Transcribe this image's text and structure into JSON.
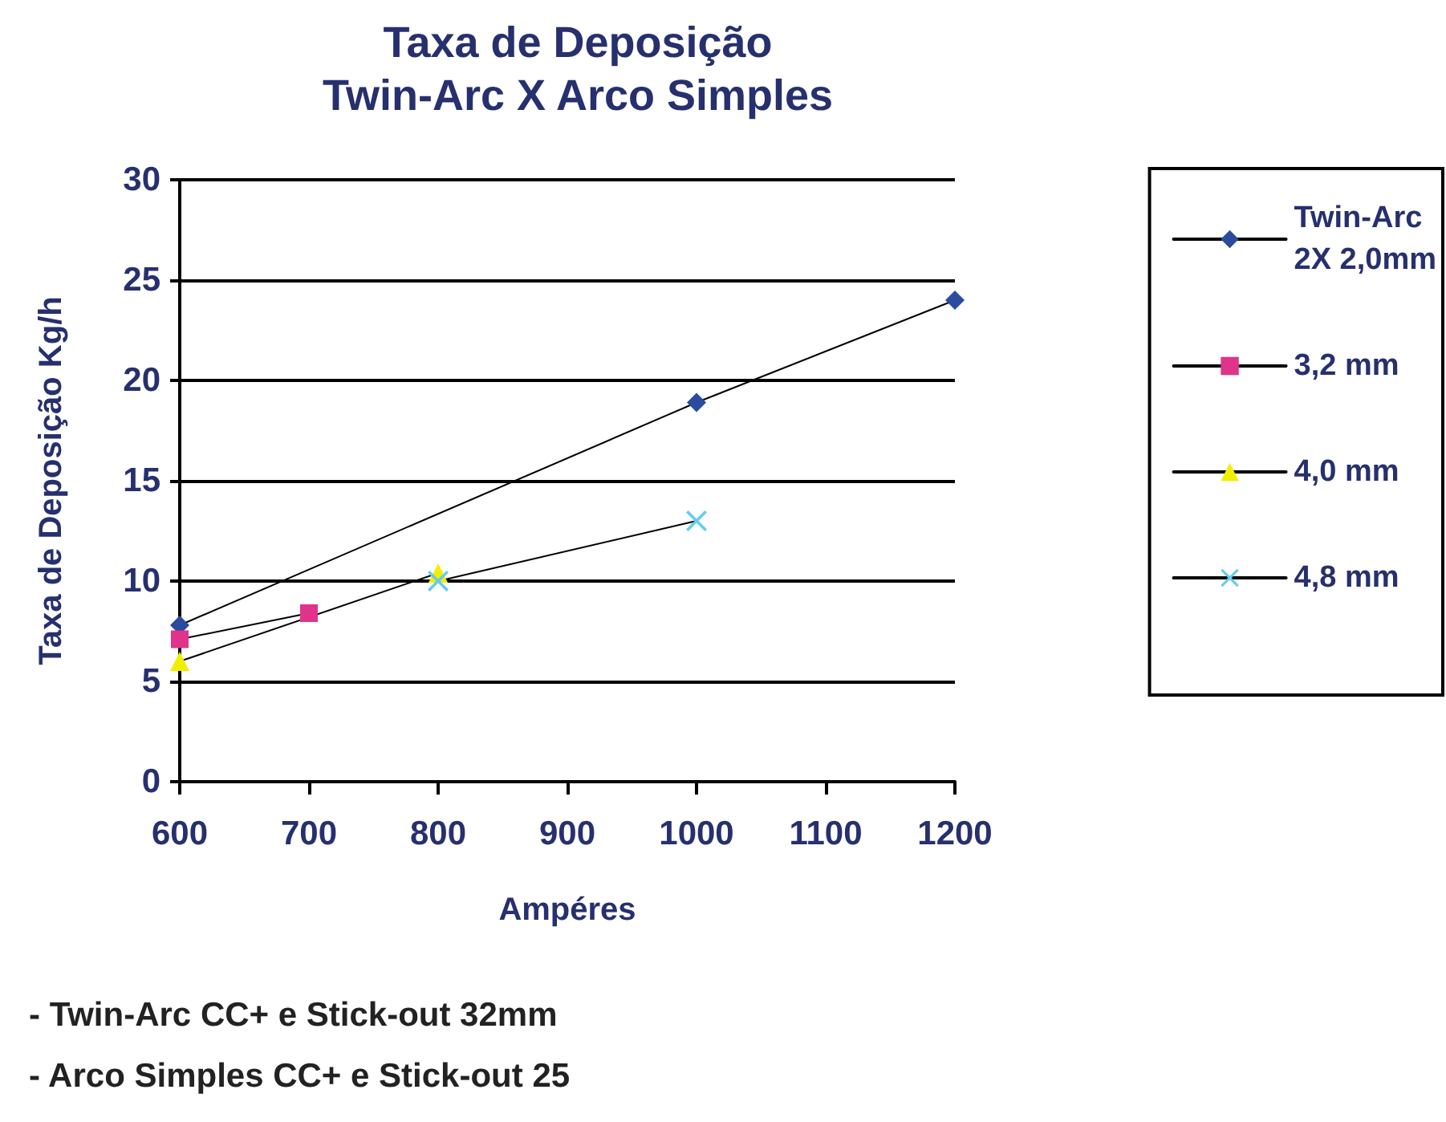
{
  "chart_data": {
    "type": "line",
    "title": "Taxa de Deposição",
    "subtitle": "Twin-Arc X Arco Simples",
    "xlabel": "Ampéres",
    "ylabel": "Taxa de Deposição Kg/h",
    "annotations": [
      "- Twin-Arc CC+ e Stick-out 32mm",
      "- Arco Simples CC+ e Stick-out 25"
    ],
    "series": [
      {
        "name": "Twin-Arc\n2X 2,0mm",
        "color": "#2b4c9c",
        "marker": "diamond",
        "x": [
          600,
          1000,
          1200
        ],
        "values": [
          7.8,
          18.9,
          24
        ]
      },
      {
        "name": "3,2 mm",
        "color": "#e0338a",
        "marker": "square",
        "x": [
          600,
          700
        ],
        "values": [
          7.1,
          8.4
        ]
      },
      {
        "name": "4,0 mm",
        "color": "#f2ee00",
        "marker": "triangle",
        "x": [
          600,
          800
        ],
        "values": [
          6,
          10.4
        ]
      },
      {
        "name": "4,8 mm",
        "color": "#66ccee",
        "marker": "cross",
        "x": [
          800,
          1000
        ],
        "values": [
          10,
          13
        ]
      }
    ],
    "xlim": [
      600,
      1200
    ],
    "xticks": [
      600,
      700,
      800,
      900,
      1000,
      1100,
      1200
    ],
    "ylim": [
      0,
      30
    ],
    "yticks": [
      0,
      5,
      10,
      15,
      20,
      25,
      30
    ],
    "grid": "y",
    "legend": "right",
    "line_style": "solid"
  }
}
